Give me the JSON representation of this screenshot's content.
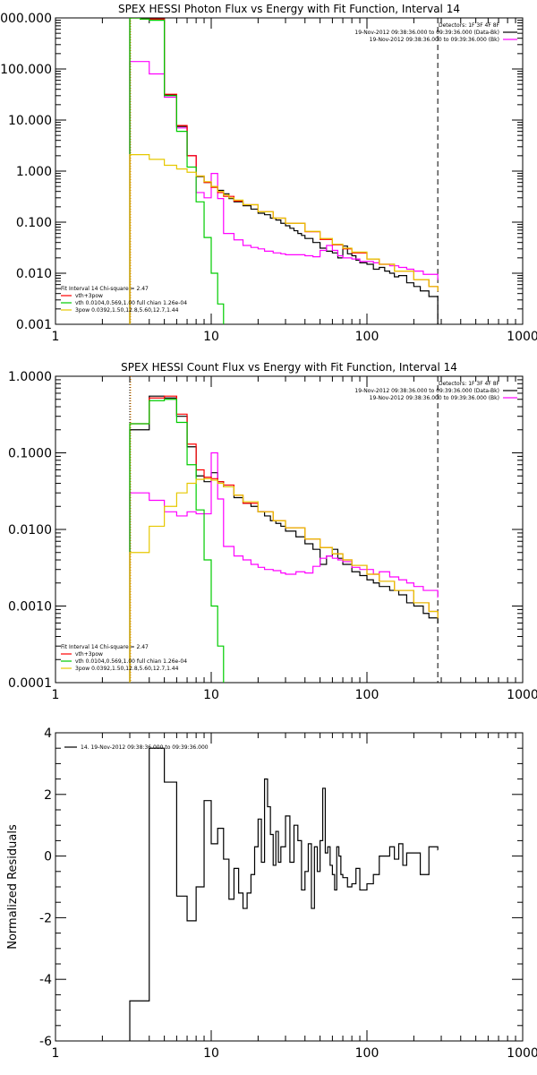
{
  "chart_data": [
    {
      "type": "line",
      "title": "SPEX HESSI Photon Flux vs Energy with Fit Function, Interval 14",
      "xlabel": "",
      "ylabel": "",
      "x_scale": "log",
      "y_scale": "log",
      "xlim": [
        1,
        1000
      ],
      "ylim": [
        0.001,
        1000
      ],
      "x_ticks": [
        1,
        10,
        100,
        1000
      ],
      "x_tick_labels": [
        "1",
        "10",
        "100",
        "1000"
      ],
      "y_ticks": [
        0.001,
        0.01,
        0.1,
        1,
        10,
        100,
        1000
      ],
      "y_tick_labels": [
        "0.001",
        "0.010",
        "0.100",
        "1.000",
        "10.000",
        "100.000",
        "1000.000"
      ],
      "grid": false,
      "legend_top_right": [
        "Detectors: 1F 3F 4F 8F",
        "19-Nov-2012 09:38:36.000 to 09:39:36.000 (Data-Bk)",
        "19-Nov-2012 09:38:36.000 to 09:39:36.000 (Bk)"
      ],
      "legend_bottom_left": [
        "Fit Interval 14   Chi-square = 2.47",
        "vth+3pow",
        "vth 0.0104,0.569,1.00  full chian 1.26e-04",
        "3pow 0.0392,1.50,12.8,5.60,12.7,1.44"
      ],
      "vlines_x": [
        3.0,
        285
      ],
      "series": [
        {
          "name": "Data-Bk",
          "color": "#000000",
          "x": [
            3,
            3.5,
            4,
            5,
            6,
            7,
            8,
            9,
            10,
            11,
            12,
            13,
            14,
            16,
            18,
            20,
            22,
            24,
            26,
            28,
            30,
            32,
            34,
            36,
            38,
            40,
            45,
            50,
            55,
            60,
            65,
            70,
            75,
            80,
            85,
            90,
            100,
            110,
            120,
            130,
            140,
            150,
            160,
            180,
            200,
            220,
            250,
            285
          ],
          "y": [
            1000,
            950,
            950,
            31,
            7.5,
            2.0,
            0.78,
            0.6,
            0.5,
            0.42,
            0.36,
            0.29,
            0.25,
            0.21,
            0.18,
            0.15,
            0.14,
            0.12,
            0.11,
            0.095,
            0.085,
            0.076,
            0.068,
            0.06,
            0.055,
            0.048,
            0.04,
            0.031,
            0.027,
            0.025,
            0.02,
            0.034,
            0.024,
            0.022,
            0.018,
            0.016,
            0.015,
            0.012,
            0.013,
            0.011,
            0.01,
            0.0085,
            0.009,
            0.0065,
            0.0055,
            0.0045,
            0.0035,
            0.001
          ]
        },
        {
          "name": "Bk",
          "color": "#ff00ff",
          "x": [
            3,
            4,
            5,
            6,
            7,
            8,
            9,
            10,
            11,
            12,
            14,
            16,
            18,
            20,
            22,
            25,
            28,
            30,
            35,
            40,
            45,
            50,
            55,
            60,
            65,
            70,
            80,
            90,
            100,
            110,
            120,
            140,
            160,
            180,
            200,
            230,
            285
          ],
          "y": [
            140,
            80,
            28,
            7.0,
            2.0,
            0.38,
            0.3,
            0.9,
            0.29,
            0.06,
            0.045,
            0.035,
            0.032,
            0.03,
            0.027,
            0.025,
            0.024,
            0.023,
            0.023,
            0.022,
            0.021,
            0.028,
            0.035,
            0.028,
            0.022,
            0.02,
            0.019,
            0.017,
            0.017,
            0.016,
            0.015,
            0.014,
            0.013,
            0.012,
            0.011,
            0.0095,
            0.0075
          ]
        },
        {
          "name": "vth+3pow",
          "color": "#ff0000",
          "x": [
            3,
            3.5,
            4,
            5,
            6,
            7,
            8,
            9,
            10,
            11,
            12,
            14,
            16,
            20,
            25,
            30,
            40,
            50,
            60,
            70,
            80,
            100,
            120,
            150,
            200,
            250,
            285
          ],
          "y": [
            1000,
            950,
            950,
            32,
            7.8,
            2.0,
            0.8,
            0.6,
            0.48,
            0.38,
            0.32,
            0.26,
            0.22,
            0.16,
            0.12,
            0.095,
            0.065,
            0.046,
            0.036,
            0.03,
            0.025,
            0.019,
            0.015,
            0.011,
            0.0075,
            0.0055,
            0.0045
          ]
        },
        {
          "name": "vth",
          "color": "#00cc00",
          "x": [
            3,
            3.5,
            4,
            5,
            6,
            7,
            8,
            9,
            10,
            11,
            12
          ],
          "y": [
            1000,
            950,
            900,
            30,
            6.0,
            1.2,
            0.25,
            0.05,
            0.01,
            0.0025,
            0.001
          ]
        },
        {
          "name": "3pow",
          "color": "#e6c800",
          "x": [
            3,
            4,
            5,
            6,
            7,
            8,
            9,
            10,
            11,
            12,
            13,
            14,
            16,
            20,
            25,
            30,
            40,
            50,
            60,
            70,
            80,
            100,
            120,
            150,
            200,
            250,
            285
          ],
          "y": [
            2.1,
            1.7,
            1.3,
            1.1,
            0.95,
            0.8,
            0.62,
            0.5,
            0.4,
            0.34,
            0.3,
            0.27,
            0.22,
            0.16,
            0.12,
            0.095,
            0.066,
            0.048,
            0.037,
            0.031,
            0.026,
            0.019,
            0.015,
            0.011,
            0.0075,
            0.0055,
            0.0045
          ]
        }
      ]
    },
    {
      "type": "line",
      "title": "SPEX HESSI Count Flux vs Energy with Fit Function, Interval 14",
      "xlabel": "",
      "ylabel": "",
      "x_scale": "log",
      "y_scale": "log",
      "xlim": [
        1,
        1000
      ],
      "ylim": [
        0.0001,
        1
      ],
      "x_ticks": [
        1,
        10,
        100,
        1000
      ],
      "x_tick_labels": [
        "1",
        "10",
        "100",
        "1000"
      ],
      "y_ticks": [
        0.0001,
        0.001,
        0.01,
        0.1,
        1
      ],
      "y_tick_labels": [
        "0.0001",
        "0.0010",
        "0.0100",
        "0.1000",
        "1.0000"
      ],
      "grid": false,
      "legend_top_right": [
        "Detectors: 1F 3F 4F 8F",
        "19-Nov-2012 09:38:36.000 to 09:39:36.000 (Data-Bk)",
        "19-Nov-2012 09:38:36.000 to 09:39:36.000 (Bk)"
      ],
      "legend_bottom_left": [
        "Fit Interval 14   Chi-square = 2.47",
        "vth+3pow",
        "vth 0.0104,0.569,1.00  full chian 1.26e-04",
        "3pow 0.0392,1.50,12.8,5.60,12.7,1.44"
      ],
      "vlines_x": [
        3.0,
        285
      ],
      "series": [
        {
          "name": "Data-Bk",
          "color": "#000000",
          "x": [
            3,
            4,
            5,
            6,
            7,
            8,
            9,
            10,
            11,
            12,
            14,
            16,
            18,
            20,
            22,
            24,
            26,
            28,
            30,
            35,
            40,
            45,
            50,
            55,
            60,
            65,
            70,
            80,
            90,
            100,
            110,
            120,
            140,
            160,
            180,
            200,
            230,
            250,
            285
          ],
          "y": [
            0.2,
            0.55,
            0.52,
            0.3,
            0.12,
            0.05,
            0.042,
            0.055,
            0.042,
            0.036,
            0.026,
            0.022,
            0.02,
            0.017,
            0.015,
            0.013,
            0.012,
            0.011,
            0.0095,
            0.008,
            0.0065,
            0.0055,
            0.0035,
            0.0045,
            0.0055,
            0.0042,
            0.0035,
            0.0028,
            0.0025,
            0.0022,
            0.002,
            0.0018,
            0.0016,
            0.0014,
            0.0011,
            0.001,
            0.0008,
            0.0007,
            0.0006
          ]
        },
        {
          "name": "Bk",
          "color": "#ff00ff",
          "x": [
            3,
            4,
            5,
            6,
            7,
            8,
            9,
            10,
            11,
            12,
            14,
            16,
            18,
            20,
            22,
            25,
            28,
            30,
            35,
            40,
            45,
            50,
            55,
            60,
            65,
            70,
            80,
            90,
            100,
            110,
            120,
            140,
            160,
            180,
            200,
            230,
            285
          ],
          "y": [
            0.03,
            0.024,
            0.017,
            0.015,
            0.017,
            0.016,
            0.016,
            0.1,
            0.025,
            0.006,
            0.0045,
            0.004,
            0.0035,
            0.0032,
            0.003,
            0.0029,
            0.0027,
            0.0026,
            0.0028,
            0.0027,
            0.0033,
            0.0042,
            0.0045,
            0.0042,
            0.004,
            0.0038,
            0.0032,
            0.003,
            0.003,
            0.0026,
            0.0028,
            0.0024,
            0.0022,
            0.002,
            0.0018,
            0.0016,
            0.0013
          ]
        },
        {
          "name": "vth+3pow",
          "color": "#ff0000",
          "x": [
            3,
            4,
            5,
            6,
            7,
            8,
            9,
            10,
            11,
            12,
            14,
            16,
            20,
            25,
            30,
            40,
            50,
            60,
            70,
            80,
            100,
            120,
            150,
            200,
            250,
            285
          ],
          "y": [
            0.24,
            0.52,
            0.55,
            0.32,
            0.13,
            0.06,
            0.048,
            0.046,
            0.042,
            0.038,
            0.028,
            0.022,
            0.017,
            0.013,
            0.0105,
            0.0075,
            0.0058,
            0.0048,
            0.004,
            0.0034,
            0.0026,
            0.0021,
            0.0016,
            0.0011,
            0.00085,
            0.0007
          ]
        },
        {
          "name": "vth",
          "color": "#00cc00",
          "x": [
            3,
            4,
            5,
            6,
            7,
            8,
            9,
            10,
            11,
            12
          ],
          "y": [
            0.24,
            0.48,
            0.5,
            0.25,
            0.07,
            0.018,
            0.004,
            0.001,
            0.0003,
            0.0001
          ]
        },
        {
          "name": "3pow",
          "color": "#e6c800",
          "x": [
            3,
            4,
            5,
            6,
            7,
            8,
            9,
            10,
            11,
            12,
            14,
            16,
            20,
            25,
            30,
            40,
            50,
            60,
            70,
            80,
            100,
            120,
            150,
            200,
            250,
            285
          ],
          "y": [
            0.005,
            0.011,
            0.02,
            0.03,
            0.04,
            0.045,
            0.046,
            0.044,
            0.04,
            0.036,
            0.028,
            0.023,
            0.017,
            0.013,
            0.0105,
            0.0075,
            0.0058,
            0.0048,
            0.004,
            0.0034,
            0.0026,
            0.0021,
            0.0016,
            0.0011,
            0.00085,
            0.0007
          ]
        }
      ]
    },
    {
      "type": "line",
      "title": "",
      "xlabel": "",
      "ylabel": "Normalized Residuals",
      "x_scale": "log",
      "y_scale": "linear",
      "xlim": [
        1,
        1000
      ],
      "ylim": [
        -6,
        4
      ],
      "x_ticks": [
        1,
        10,
        100,
        1000
      ],
      "x_tick_labels": [
        "1",
        "10",
        "100",
        "1000"
      ],
      "y_ticks": [
        -6,
        -4,
        -2,
        0,
        2,
        4
      ],
      "y_tick_labels": [
        "-6",
        "-4",
        "-2",
        "0",
        "2",
        "4"
      ],
      "grid": false,
      "legend_top_left": [
        "14. 19-Nov-2012 09:38:36.000 to 09:39:36.000"
      ],
      "series": [
        {
          "name": "",
          "color": "#000000",
          "x": [
            3,
            4,
            5,
            6,
            7,
            8,
            9,
            10,
            11,
            12,
            13,
            14,
            15,
            16,
            17,
            18,
            19,
            20,
            21,
            22,
            23,
            24,
            25,
            26,
            27,
            28,
            30,
            32,
            34,
            36,
            38,
            40,
            42,
            44,
            46,
            48,
            50,
            52,
            54,
            56,
            58,
            60,
            62,
            64,
            66,
            68,
            70,
            75,
            80,
            85,
            90,
            100,
            110,
            120,
            130,
            140,
            150,
            160,
            170,
            180,
            200,
            220,
            250,
            285
          ],
          "y": [
            -4.7,
            3.5,
            2.4,
            -1.3,
            -2.1,
            -1.0,
            1.8,
            0.4,
            0.9,
            -0.1,
            -1.4,
            -0.4,
            -1.2,
            -1.7,
            -1.2,
            -0.6,
            0.3,
            1.2,
            -0.2,
            2.5,
            1.6,
            0.7,
            -0.3,
            0.8,
            -0.2,
            0.3,
            1.3,
            -0.2,
            1.0,
            0.5,
            -1.1,
            -0.5,
            0.4,
            -1.7,
            0.3,
            -0.5,
            0.5,
            2.2,
            0.1,
            0.3,
            -0.3,
            -0.6,
            -1.1,
            0.3,
            0.0,
            -0.6,
            -0.7,
            -1.0,
            -0.9,
            -0.4,
            -1.1,
            -0.9,
            -0.6,
            0.0,
            0.0,
            0.3,
            -0.1,
            0.4,
            -0.3,
            0.1,
            0.1,
            -0.6,
            0.3,
            0.2
          ]
        }
      ]
    }
  ]
}
